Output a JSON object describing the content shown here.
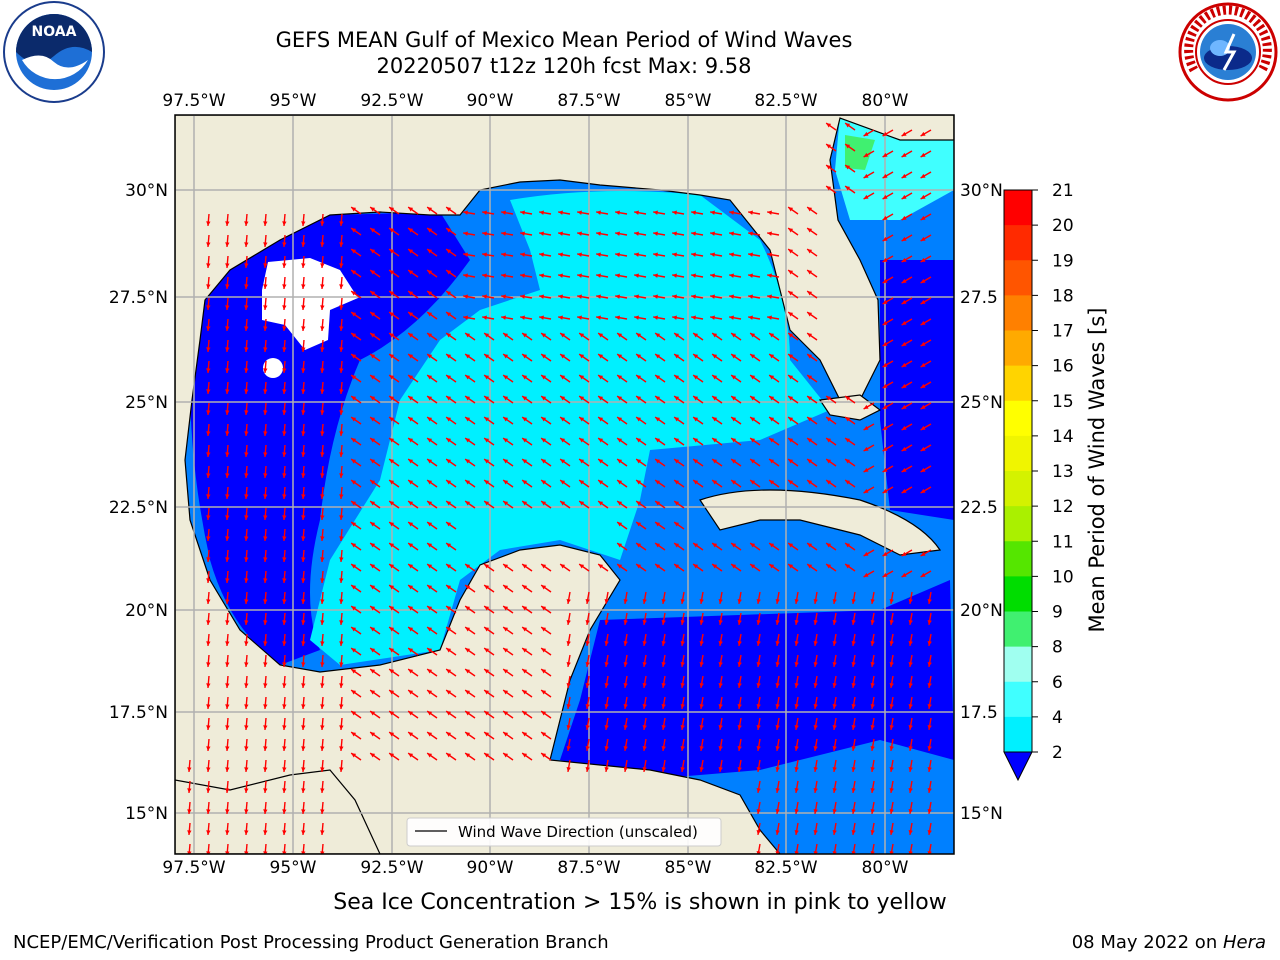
{
  "title": {
    "line1": "GEFS MEAN Gulf of Mexico Mean Period of Wind Waves",
    "line2": "20220507 t12z 120h fcst   Max: 9.58"
  },
  "logos": {
    "left": "noaa-logo",
    "right": "nws-logo",
    "left_text": "NOAA",
    "left_ring_text": "NATIONAL OCEANIC AND ATMOSPHERIC ADMINISTRATION · U.S. DEPARTMENT OF COMMERCE",
    "right_ring_text": "NATIONAL WEATHER SERVICE"
  },
  "map": {
    "lon_labels": [
      "97.5°W",
      "95°W",
      "92.5°W",
      "90°W",
      "87.5°W",
      "85°W",
      "82.5°W",
      "80°W"
    ],
    "lat_labels_left": [
      "30°N",
      "27.5°N",
      "25°N",
      "22.5°N",
      "20°N",
      "17.5°N",
      "15°N"
    ],
    "lat_labels_right": [
      "30°N",
      "27.5",
      "25°N",
      "22.5",
      "20°N",
      "17.5",
      "15°N"
    ],
    "legend_text": "Wind Wave Direction (unscaled)",
    "colors": {
      "land": "#efecd9",
      "coast": "#000000",
      "grid": "#b0b0b0",
      "arrow": "#ff0000"
    }
  },
  "colorbar": {
    "label": "Mean Period of Wind Waves [s]",
    "ticks": [
      "21",
      "20",
      "19",
      "18",
      "17",
      "16",
      "15",
      "14",
      "13",
      "12",
      "11",
      "10",
      "9",
      "8",
      "6",
      "4",
      "2"
    ],
    "colors": [
      "#ff0000",
      "#ff2a00",
      "#ff5500",
      "#ff8000",
      "#ffaa00",
      "#ffd400",
      "#ffff00",
      "#f0f500",
      "#d4f200",
      "#aaf000",
      "#55e600",
      "#00dd00",
      "#40f070",
      "#a0fff0",
      "#40ffff",
      "#00f0ff",
      "#0080ff"
    ],
    "extend_color": "#0000ff"
  },
  "footer": {
    "note": "Sea Ice Concentration > 15% is shown in pink to yellow",
    "left": "NCEP/EMC/Verification Post Processing Product Generation Branch",
    "date": "08 May 2022 on ",
    "host": "Hera"
  }
}
